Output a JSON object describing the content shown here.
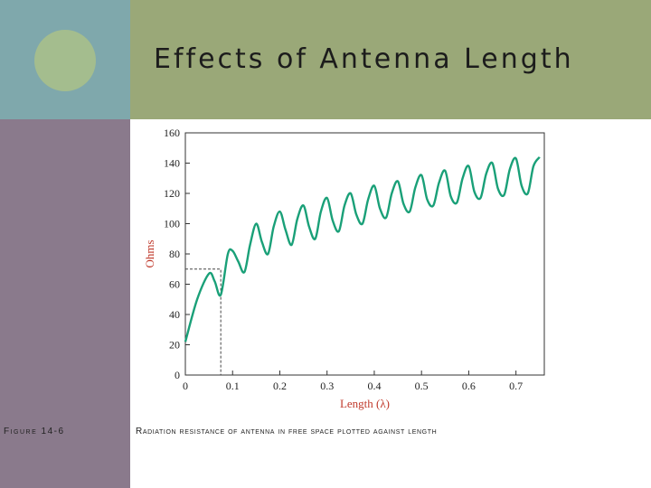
{
  "slide": {
    "title": "Effects of Antenna Length",
    "figure_label": "Figure 14-6",
    "caption": "Radiation resistance of antenna in free space plotted against length"
  },
  "colors": {
    "teal_block": "#7fa8ac",
    "mauve_block": "#8a7a8c",
    "olive_block": "#9aa878",
    "circle": "#a4bd8e",
    "curve": "#1aa078",
    "axis_label": "#c0392b"
  },
  "chart_data": {
    "type": "line",
    "title": "",
    "xlabel": "Length (λ)",
    "ylabel": "Ohms",
    "xlim": [
      0,
      0.76
    ],
    "ylim": [
      0,
      160
    ],
    "xticks": [
      "0",
      "0.1",
      "0.2",
      "0.3",
      "0.4",
      "0.5",
      "0.6",
      "0.7"
    ],
    "yticks": [
      "0",
      "20",
      "40",
      "60",
      "80",
      "100",
      "120",
      "140",
      "160"
    ],
    "grid": false,
    "reference_point": {
      "x": 0.075,
      "y": 70
    },
    "series": [
      {
        "name": "",
        "x": [
          0,
          0.025,
          0.05,
          0.062,
          0.075,
          0.09,
          0.1,
          0.112,
          0.125,
          0.137,
          0.15,
          0.162,
          0.175,
          0.187,
          0.2,
          0.212,
          0.225,
          0.237,
          0.25,
          0.262,
          0.275,
          0.287,
          0.3,
          0.312,
          0.325,
          0.337,
          0.35,
          0.362,
          0.375,
          0.387,
          0.4,
          0.412,
          0.425,
          0.437,
          0.45,
          0.462,
          0.475,
          0.487,
          0.5,
          0.512,
          0.525,
          0.537,
          0.55,
          0.562,
          0.575,
          0.587,
          0.6,
          0.612,
          0.625,
          0.637,
          0.65,
          0.662,
          0.675,
          0.687,
          0.7,
          0.712,
          0.725,
          0.737,
          0.75
        ],
        "values": [
          22,
          50,
          67,
          62,
          53,
          80,
          82,
          75,
          68,
          86,
          100,
          88,
          80,
          98,
          108,
          96,
          86,
          103,
          112,
          98,
          90,
          108,
          117,
          102,
          95,
          112,
          120,
          106,
          100,
          116,
          125,
          110,
          104,
          120,
          128,
          113,
          108,
          124,
          132,
          116,
          112,
          127,
          135,
          118,
          114,
          130,
          138,
          121,
          117,
          133,
          140,
          123,
          119,
          136,
          143,
          125,
          120,
          138,
          144
        ]
      }
    ]
  }
}
